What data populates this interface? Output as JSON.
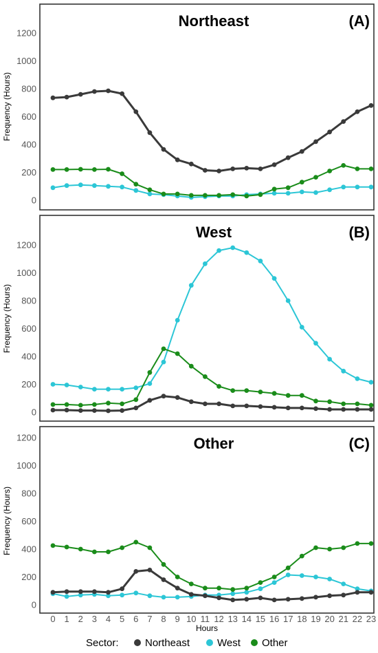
{
  "colors": {
    "Northeast": "#3a3a3a",
    "West": "#2cc6d6",
    "Other": "#1a8c1a"
  },
  "legend": {
    "title": "Sector:",
    "items": [
      "Northeast",
      "West",
      "Other"
    ]
  },
  "x_axis_title": "Hours",
  "chart_data": [
    {
      "type": "line",
      "panel_title": "Northeast",
      "panel_label": "(A)",
      "ylabel": "Frequency (Hours)",
      "ylim": [
        0,
        1300
      ],
      "yticks": [
        0,
        200,
        400,
        600,
        800,
        1000,
        1200
      ],
      "x": [
        0,
        1,
        2,
        3,
        4,
        5,
        6,
        7,
        8,
        9,
        10,
        11,
        12,
        13,
        14,
        15,
        16,
        17,
        18,
        19,
        20,
        21,
        22,
        23
      ],
      "series": [
        {
          "name": "Northeast",
          "values": [
            735,
            740,
            760,
            780,
            785,
            765,
            635,
            485,
            365,
            290,
            260,
            215,
            210,
            225,
            230,
            225,
            255,
            305,
            350,
            420,
            490,
            565,
            635,
            680
          ]
        },
        {
          "name": "West",
          "values": [
            90,
            105,
            110,
            105,
            100,
            95,
            70,
            45,
            40,
            30,
            20,
            25,
            30,
            30,
            40,
            45,
            50,
            50,
            60,
            55,
            75,
            95,
            95,
            95
          ]
        },
        {
          "name": "Other",
          "values": [
            220,
            220,
            222,
            220,
            222,
            190,
            115,
            75,
            45,
            45,
            35,
            35,
            35,
            40,
            30,
            40,
            80,
            90,
            130,
            165,
            210,
            250,
            225,
            225
          ]
        }
      ]
    },
    {
      "type": "line",
      "panel_title": "West",
      "panel_label": "(B)",
      "ylabel": "Frequency (Hours)",
      "ylim": [
        0,
        1300
      ],
      "yticks": [
        0,
        200,
        400,
        600,
        800,
        1000,
        1200
      ],
      "x": [
        0,
        1,
        2,
        3,
        4,
        5,
        6,
        7,
        8,
        9,
        10,
        11,
        12,
        13,
        14,
        15,
        16,
        17,
        18,
        19,
        20,
        21,
        22,
        23
      ],
      "series": [
        {
          "name": "Northeast",
          "values": [
            15,
            15,
            12,
            12,
            10,
            12,
            30,
            85,
            115,
            105,
            75,
            60,
            60,
            45,
            45,
            40,
            35,
            30,
            30,
            25,
            20,
            20,
            20,
            20
          ]
        },
        {
          "name": "West",
          "values": [
            200,
            195,
            180,
            165,
            165,
            165,
            175,
            205,
            360,
            660,
            910,
            1065,
            1160,
            1180,
            1145,
            1085,
            960,
            800,
            610,
            495,
            380,
            295,
            240,
            215
          ]
        },
        {
          "name": "Other",
          "values": [
            55,
            55,
            50,
            55,
            65,
            60,
            90,
            285,
            455,
            420,
            330,
            255,
            185,
            155,
            155,
            145,
            135,
            120,
            120,
            80,
            75,
            60,
            60,
            50
          ]
        }
      ]
    },
    {
      "type": "line",
      "panel_title": "Other",
      "panel_label": "(C)",
      "ylabel": "Frequency (Hours)",
      "ylim": [
        0,
        1300
      ],
      "yticks": [
        0,
        200,
        400,
        600,
        800,
        1000,
        1200
      ],
      "x": [
        0,
        1,
        2,
        3,
        4,
        5,
        6,
        7,
        8,
        9,
        10,
        11,
        12,
        13,
        14,
        15,
        16,
        17,
        18,
        19,
        20,
        21,
        22,
        23
      ],
      "series": [
        {
          "name": "Northeast",
          "values": [
            90,
            95,
            95,
            95,
            90,
            115,
            240,
            250,
            180,
            120,
            75,
            65,
            50,
            35,
            40,
            50,
            35,
            40,
            45,
            55,
            65,
            70,
            90,
            90
          ]
        },
        {
          "name": "West",
          "values": [
            80,
            60,
            70,
            75,
            65,
            70,
            85,
            65,
            55,
            55,
            60,
            70,
            70,
            80,
            90,
            115,
            160,
            215,
            210,
            200,
            185,
            150,
            115,
            100
          ]
        },
        {
          "name": "Other",
          "values": [
            425,
            415,
            400,
            380,
            380,
            410,
            450,
            410,
            290,
            200,
            150,
            120,
            120,
            110,
            120,
            160,
            200,
            265,
            350,
            410,
            400,
            410,
            440,
            440
          ]
        }
      ]
    }
  ]
}
